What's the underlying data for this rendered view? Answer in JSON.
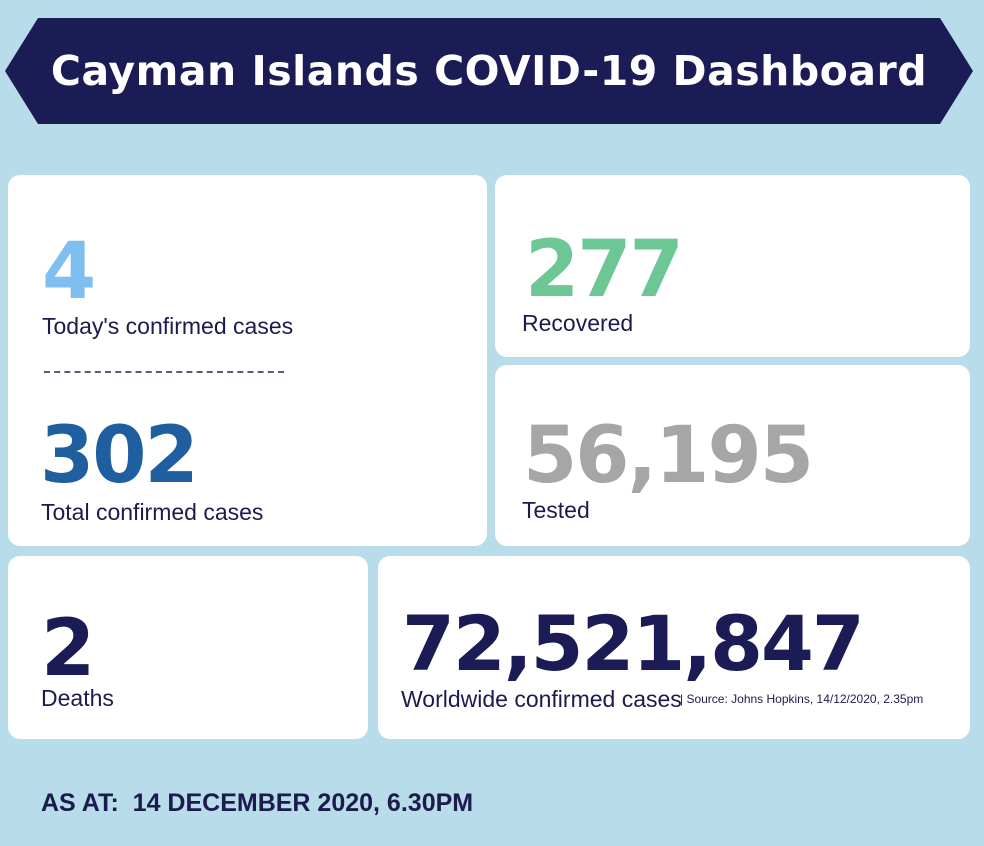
{
  "header": {
    "title": "Cayman Islands COVID-19 Dashboard"
  },
  "colors": {
    "background": "#b8dcea",
    "banner": "#1b1b55",
    "navy_text": "#1b1b4e",
    "today_cases": "#7fbfef",
    "total_cases": "#1f5fa0",
    "recovered": "#6cc795",
    "tested": "#a6a6a6",
    "deaths": "#1b1b55",
    "worldwide": "#1b1b55"
  },
  "stats": {
    "today_cases": {
      "value": "4",
      "label": "Today's confirmed cases"
    },
    "total_cases": {
      "value": "302",
      "label": "Total confirmed cases"
    },
    "recovered": {
      "value": "277",
      "label": "Recovered"
    },
    "tested": {
      "value": "56,195",
      "label": "Tested"
    },
    "deaths": {
      "value": "2",
      "label": "Deaths"
    },
    "worldwide": {
      "value": "72,521,847",
      "label": "Worldwide confirmed cases",
      "source": "| Source: Johns Hopkins, 14/12/2020, 2.35pm"
    }
  },
  "footer": {
    "as_at": "AS AT:  14 DECEMBER 2020, 6.30PM"
  }
}
